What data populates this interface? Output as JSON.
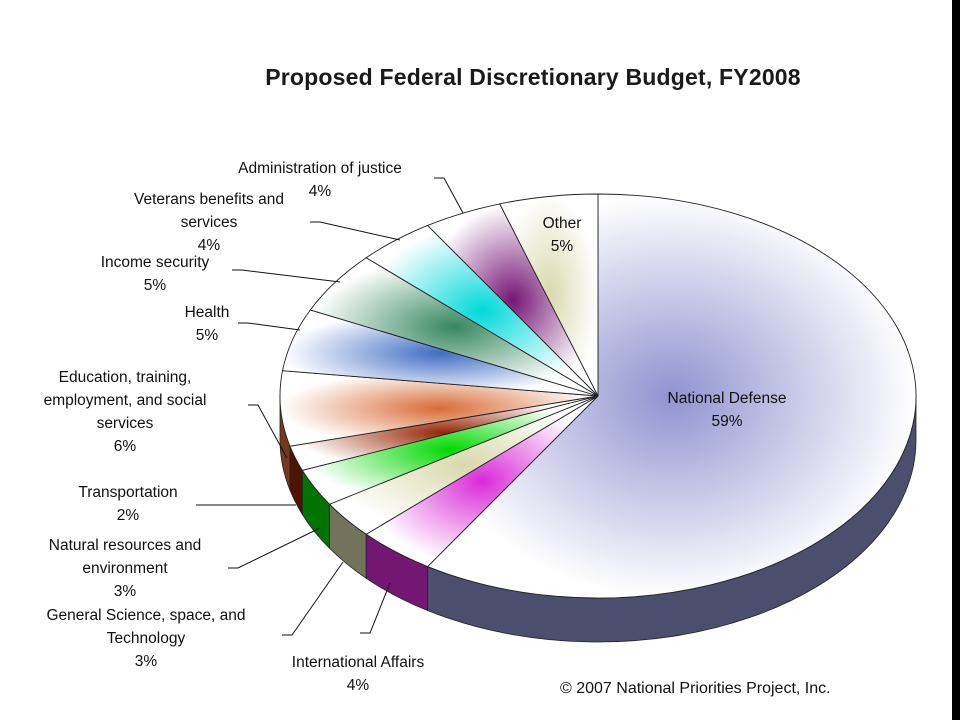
{
  "chart_data": {
    "type": "pie",
    "title": "Proposed Federal Discretionary Budget, FY2008",
    "slices": [
      {
        "label": "National Defense",
        "pct_label": "59%",
        "value": 59,
        "color": "#a9adf5",
        "label_lines": [
          "National Defense"
        ]
      },
      {
        "label": "International Affairs",
        "pct_label": "4%",
        "value": 4,
        "color": "#ff33ff",
        "label_lines": [
          "International Affairs"
        ]
      },
      {
        "label": "General Science, space, and Technology",
        "pct_label": "3%",
        "value": 3,
        "color": "#ffffcc",
        "label_lines": [
          "General Science, space, and",
          "Technology"
        ]
      },
      {
        "label": "Natural resources and environment",
        "pct_label": "3%",
        "value": 3,
        "color": "#00ff00",
        "label_lines": [
          "Natural resources and",
          "environment"
        ]
      },
      {
        "label": "Transportation",
        "pct_label": "2%",
        "value": 2,
        "color": "#b02a02",
        "label_lines": [
          "Transportation"
        ]
      },
      {
        "label": "Education, training, employment, and social services",
        "pct_label": "6%",
        "value": 6,
        "color": "#ff7f3f",
        "label_lines": [
          "Education, training,",
          "employment, and social",
          "services"
        ]
      },
      {
        "label": "Health",
        "pct_label": "5%",
        "value": 5,
        "color": "#4a7fe6",
        "label_lines": [
          "Health"
        ]
      },
      {
        "label": "Income security",
        "pct_label": "5%",
        "value": 5,
        "color": "#3f9f6f",
        "label_lines": [
          "Income security"
        ]
      },
      {
        "label": "Veterans benefits and services",
        "pct_label": "4%",
        "value": 4,
        "color": "#00ffff",
        "label_lines": [
          "Veterans benefits and",
          "services"
        ]
      },
      {
        "label": "Administration of justice",
        "pct_label": "4%",
        "value": 4,
        "color": "#8b1a8b",
        "label_lines": [
          "Administration of justice"
        ]
      },
      {
        "label": "Other",
        "pct_label": "5%",
        "value": 5,
        "color": "#ffffcc",
        "label_lines": [
          "Other"
        ]
      }
    ],
    "legend": "none"
  },
  "footer": {
    "copyright": "© 2007 National Priorities Project, Inc."
  }
}
